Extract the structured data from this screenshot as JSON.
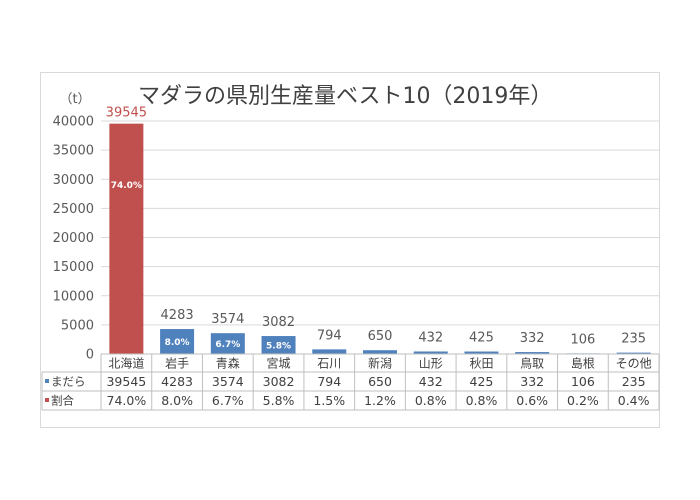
{
  "chart_data": {
    "type": "bar",
    "title": "マダラの県別生産量ベスト10（2019年）",
    "unit_label": "（t）",
    "ylim": [
      0,
      40000
    ],
    "y_ticks": [
      0,
      5000,
      10000,
      15000,
      20000,
      25000,
      30000,
      35000,
      40000
    ],
    "grid": true,
    "categories": [
      "北海道",
      "岩手",
      "青森",
      "宮城",
      "石川",
      "新潟",
      "山形",
      "秋田",
      "鳥取",
      "島根",
      "その他"
    ],
    "series": [
      {
        "name": "まだら",
        "values": [
          39545,
          4283,
          3574,
          3082,
          794,
          650,
          432,
          425,
          332,
          106,
          235
        ],
        "value_labels": [
          "39545",
          "4283",
          "3574",
          "3082",
          "794",
          "650",
          "432",
          "425",
          "332",
          "106",
          "235"
        ]
      }
    ],
    "share_label": "割合",
    "shares": [
      "74.0%",
      "8.0%",
      "6.7%",
      "5.8%",
      "1.5%",
      "1.2%",
      "0.8%",
      "0.8%",
      "0.6%",
      "0.2%",
      "0.4%"
    ],
    "bar_share_labels": [
      "74.0%",
      "8.0%",
      "6.7%",
      "5.8%"
    ],
    "colors": {
      "top_bar": "#c0504d",
      "bar": "#4f81bd",
      "top_value_label": "#c0504d",
      "grid": "#d9d9d9",
      "legend_madara": "#4f81bd",
      "legend_share": "#c0504d"
    }
  }
}
